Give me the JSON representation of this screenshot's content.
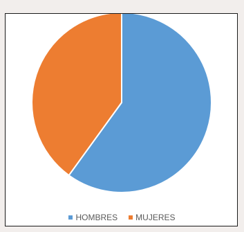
{
  "chart_data": {
    "type": "pie",
    "title": "",
    "categories": [
      "HOMBRES",
      "MUJERES"
    ],
    "values": [
      60,
      40
    ],
    "colors": [
      "#5b9bd5",
      "#ed7d31"
    ],
    "start_angle_deg": 0,
    "legend_position": "bottom"
  }
}
